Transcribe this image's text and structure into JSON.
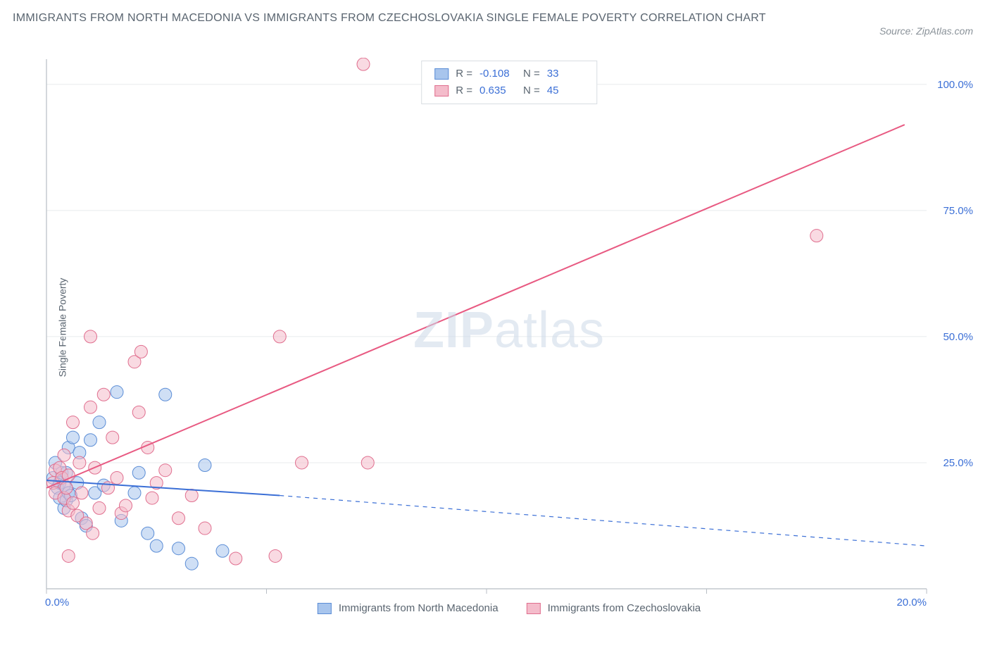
{
  "title": "IMMIGRANTS FROM NORTH MACEDONIA VS IMMIGRANTS FROM CZECHOSLOVAKIA SINGLE FEMALE POVERTY CORRELATION CHART",
  "source": "Source: ZipAtlas.com",
  "y_axis_label": "Single Female Poverty",
  "watermark_zip": "ZIP",
  "watermark_atlas": "atlas",
  "chart": {
    "type": "scatter",
    "background_color": "#ffffff",
    "grid_color": "#e8ebee",
    "axis_line_color": "#b8bec4",
    "tick_color": "#b8bec4",
    "xlim": [
      0,
      20
    ],
    "ylim": [
      0,
      105
    ],
    "x_ticks": [
      0,
      5,
      10,
      15,
      20
    ],
    "x_tick_labels": [
      "0.0%",
      "",
      "",
      "",
      "20.0%"
    ],
    "x_tick_label_color": "#3b6fd6",
    "y_ticks": [
      25,
      50,
      75,
      100
    ],
    "y_tick_labels": [
      "25.0%",
      "50.0%",
      "75.0%",
      "100.0%"
    ],
    "y_tick_label_color": "#3b6fd6",
    "y_tick_fontsize": 15,
    "x_tick_fontsize": 15,
    "series": [
      {
        "name": "Immigrants from North Macedonia",
        "color_fill": "#a8c5ed",
        "color_stroke": "#5b8dd6",
        "fill_opacity": 0.55,
        "marker_radius": 9,
        "R": "-0.108",
        "N": "33",
        "trend": {
          "x1": 0,
          "y1": 21.5,
          "x2": 5.3,
          "y2": 18.5,
          "x2_dash": 20,
          "y2_dash": 8.5,
          "color": "#3b6fd6",
          "width": 2
        },
        "points": [
          [
            0.15,
            22
          ],
          [
            0.2,
            25
          ],
          [
            0.25,
            20
          ],
          [
            0.3,
            18
          ],
          [
            0.3,
            21
          ],
          [
            0.35,
            23
          ],
          [
            0.4,
            20.5
          ],
          [
            0.4,
            16
          ],
          [
            0.45,
            23
          ],
          [
            0.45,
            17.5
          ],
          [
            0.5,
            28
          ],
          [
            0.5,
            19
          ],
          [
            0.55,
            18.5
          ],
          [
            0.6,
            30
          ],
          [
            0.7,
            21
          ],
          [
            0.75,
            27
          ],
          [
            0.8,
            14
          ],
          [
            0.9,
            12.5
          ],
          [
            1.0,
            29.5
          ],
          [
            1.1,
            19
          ],
          [
            1.2,
            33
          ],
          [
            1.3,
            20.5
          ],
          [
            1.6,
            39
          ],
          [
            1.7,
            13.5
          ],
          [
            2.0,
            19
          ],
          [
            2.1,
            23
          ],
          [
            2.3,
            11
          ],
          [
            2.5,
            8.5
          ],
          [
            2.7,
            38.5
          ],
          [
            3.0,
            8
          ],
          [
            3.3,
            5
          ],
          [
            3.6,
            24.5
          ],
          [
            4.0,
            7.5
          ]
        ]
      },
      {
        "name": "Immigrants from Czechoslovakia",
        "color_fill": "#f4bccb",
        "color_stroke": "#e06f8f",
        "fill_opacity": 0.55,
        "marker_radius": 9,
        "R": "0.635",
        "N": "45",
        "trend": {
          "x1": 0,
          "y1": 20,
          "x2": 19.5,
          "y2": 92,
          "color": "#e85a82",
          "width": 2
        },
        "points": [
          [
            0.15,
            21
          ],
          [
            0.2,
            23.5
          ],
          [
            0.2,
            19
          ],
          [
            0.3,
            24
          ],
          [
            0.35,
            22
          ],
          [
            0.4,
            26.5
          ],
          [
            0.4,
            18
          ],
          [
            0.45,
            20
          ],
          [
            0.5,
            22.5
          ],
          [
            0.5,
            15.5
          ],
          [
            0.6,
            33
          ],
          [
            0.6,
            17
          ],
          [
            0.7,
            14.5
          ],
          [
            0.75,
            25
          ],
          [
            0.8,
            19
          ],
          [
            0.9,
            13
          ],
          [
            1.0,
            36
          ],
          [
            1.05,
            11
          ],
          [
            1.1,
            24
          ],
          [
            1.2,
            16
          ],
          [
            1.3,
            38.5
          ],
          [
            1.0,
            50
          ],
          [
            1.4,
            20
          ],
          [
            1.5,
            30
          ],
          [
            1.6,
            22
          ],
          [
            1.7,
            15
          ],
          [
            1.8,
            16.5
          ],
          [
            2.0,
            45
          ],
          [
            2.1,
            35
          ],
          [
            2.15,
            47
          ],
          [
            2.3,
            28
          ],
          [
            2.4,
            18
          ],
          [
            2.5,
            21
          ],
          [
            2.7,
            23.5
          ],
          [
            3.0,
            14
          ],
          [
            3.3,
            18.5
          ],
          [
            3.6,
            12
          ],
          [
            4.3,
            6
          ],
          [
            5.2,
            6.5
          ],
          [
            5.3,
            50
          ],
          [
            5.8,
            25
          ],
          [
            7.2,
            104
          ],
          [
            7.3,
            25
          ],
          [
            17.5,
            70
          ],
          [
            0.5,
            6.5
          ]
        ]
      }
    ]
  },
  "legend_stats": {
    "R_label": "R =",
    "N_label": "N ="
  },
  "bottom_legend": {
    "items": [
      {
        "label": "Immigrants from North Macedonia",
        "fill": "#a8c5ed",
        "stroke": "#5b8dd6"
      },
      {
        "label": "Immigrants from Czechoslovakia",
        "fill": "#f4bccb",
        "stroke": "#e06f8f"
      }
    ]
  }
}
